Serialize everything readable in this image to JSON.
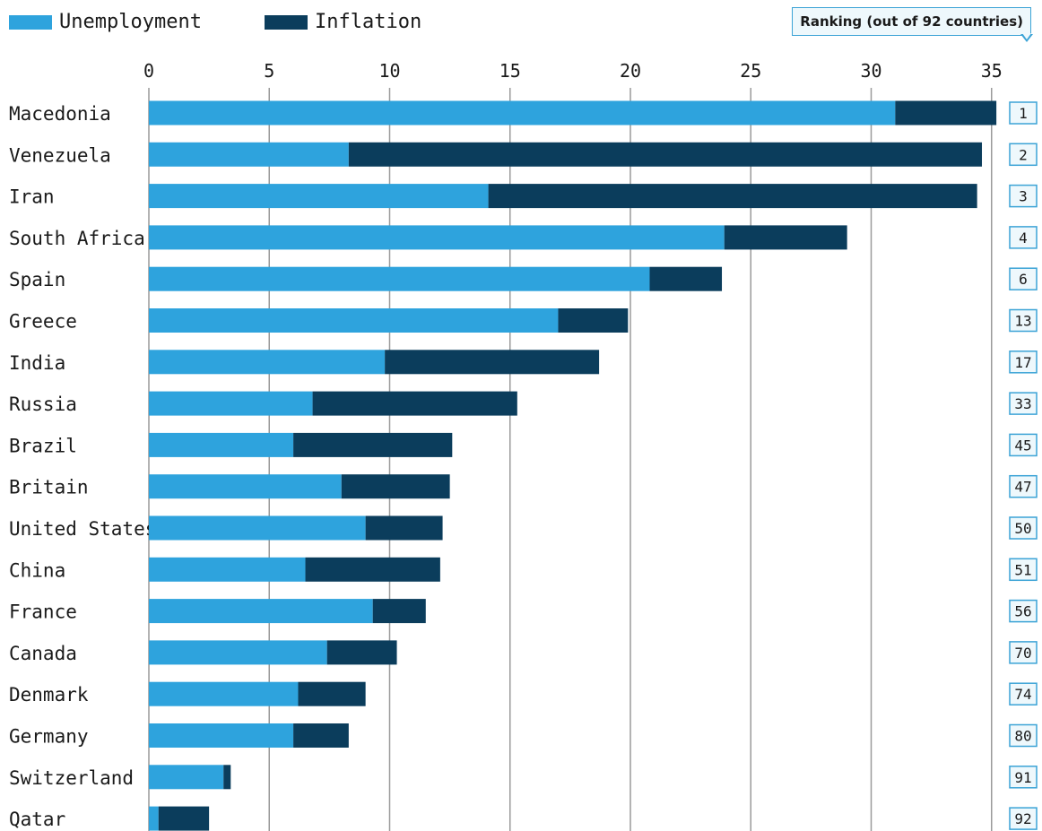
{
  "legend": {
    "unemployment_label": "Unemployment",
    "inflation_label": "Inflation"
  },
  "ranking_header": "Ranking (out of 92 countries)",
  "colors": {
    "unemployment": "#2ea3dd",
    "inflation": "#0b3d5c",
    "grid": "#9a9a9a",
    "rank_border": "#3ba3d6"
  },
  "chart_data": {
    "type": "bar",
    "orientation": "horizontal",
    "stacked": true,
    "xlim": [
      0,
      35
    ],
    "xticks": [
      0,
      5,
      10,
      15,
      20,
      25,
      30,
      35
    ],
    "grid": true,
    "legend_position": "top-left",
    "categories": [
      "Macedonia",
      "Venezuela",
      "Iran",
      "South Africa",
      "Spain",
      "Greece",
      "India",
      "Russia",
      "Brazil",
      "Britain",
      "United States",
      "China",
      "France",
      "Canada",
      "Denmark",
      "Germany",
      "Switzerland",
      "Qatar"
    ],
    "series": [
      {
        "name": "Unemployment",
        "values": [
          31.0,
          8.3,
          14.1,
          23.9,
          20.8,
          17.0,
          9.8,
          6.8,
          6.0,
          8.0,
          9.0,
          6.5,
          9.3,
          7.4,
          6.2,
          6.0,
          3.1,
          0.4
        ]
      },
      {
        "name": "Inflation",
        "values": [
          4.2,
          26.3,
          20.3,
          5.1,
          3.0,
          2.9,
          8.9,
          8.5,
          6.6,
          4.5,
          3.2,
          5.6,
          2.2,
          2.9,
          2.8,
          2.3,
          0.3,
          2.1
        ]
      }
    ],
    "ranking": [
      "1",
      "2",
      "3",
      "4",
      "6",
      "13",
      "17",
      "33",
      "45",
      "47",
      "50",
      "51",
      "56",
      "70",
      "74",
      "80",
      "91",
      "92"
    ]
  }
}
